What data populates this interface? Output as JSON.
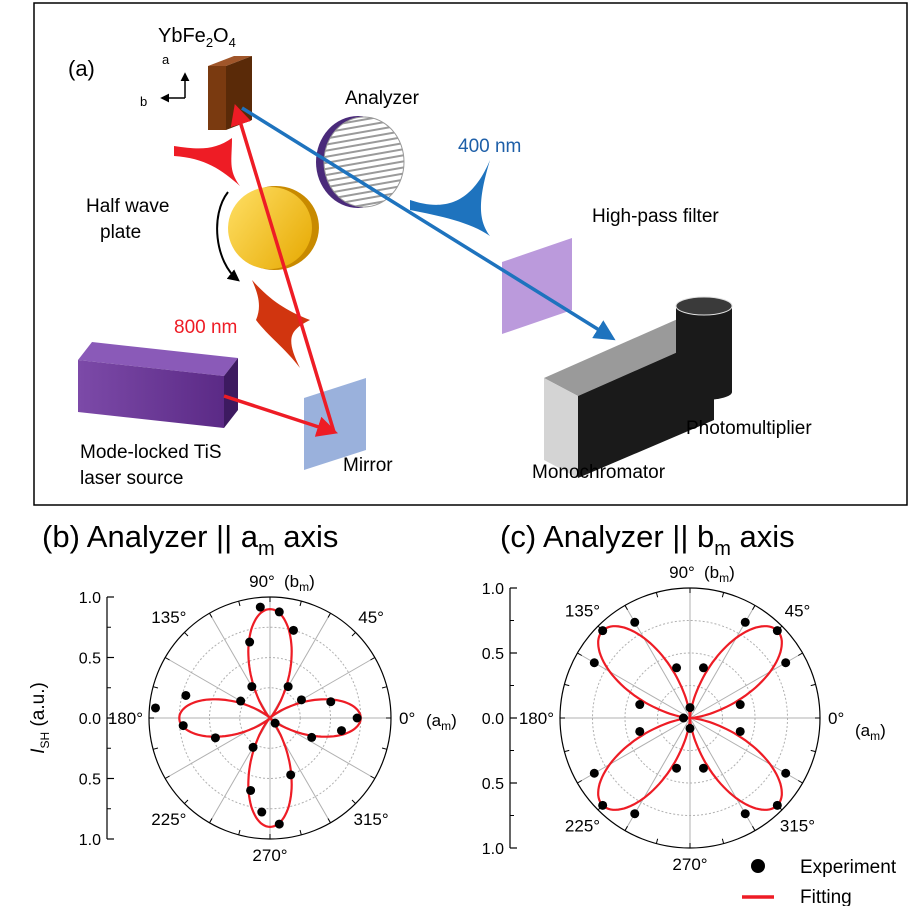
{
  "schematic": {
    "panel_label": "(a)",
    "crystal_label": "YbFe",
    "crystal_sub": "2",
    "crystal_label_end": "O",
    "crystal_sub2": "4",
    "axis_a": "a",
    "axis_b": "b",
    "analyzer": "Analyzer",
    "wavelength_blue": "400 nm",
    "half_wave_plate_line1": "Half wave",
    "half_wave_plate_line2": "plate",
    "high_pass_filter": "High-pass filter",
    "wavelength_red": "800 nm",
    "laser_line1": "Mode-locked TiS",
    "laser_line2": "laser source",
    "mirror": "Mirror",
    "photomultiplier": "Photomultiplier",
    "monochromator": "Monochromator",
    "colors": {
      "red_beam": "#ee1c25",
      "blue_beam": "#1e73be",
      "laser": "#5b2a86",
      "filter": "#b48fd8",
      "mirror": "#8fa8d8",
      "plate": "#f5c518",
      "crystal": "#7a3a10"
    }
  },
  "chart_data": [
    {
      "type": "polar-scatter",
      "panel": "(b)",
      "title_prefix": "(b) Analyzer || a",
      "title_sub": "m",
      "title_suffix": " axis",
      "ylabel": "I",
      "ylabel_sub": "SH",
      "ylabel_unit": " (a.u.)",
      "radial_ticks": [
        "1.0",
        "0.5",
        "0.0",
        "0.5",
        "1.0"
      ],
      "radial_max": 1.0,
      "angle_labels": [
        "0°",
        "45°",
        "90°",
        "135°",
        "180°",
        "225°",
        "270°",
        "315°"
      ],
      "angle_annot_0": "(a",
      "angle_annot_0_sub": "m",
      "angle_annot_90": "(b",
      "angle_annot_90_sub": "m",
      "fit_model": {
        "form": "a*cos^2(2θ)+b*cos^2(θ)",
        "petals_along": [
          0,
          90,
          180,
          270
        ],
        "lobe_long": 0.9,
        "lobe_short": 0.75
      },
      "experiment": [
        {
          "theta": 0,
          "r": 0.72
        },
        {
          "theta": 15,
          "r": 0.52
        },
        {
          "theta": 30,
          "r": 0.3
        },
        {
          "theta": 60,
          "r": 0.3
        },
        {
          "theta": 75,
          "r": 0.75
        },
        {
          "theta": 85,
          "r": 0.88
        },
        {
          "theta": 95,
          "r": 0.92
        },
        {
          "theta": 105,
          "r": 0.65
        },
        {
          "theta": 120,
          "r": 0.3
        },
        {
          "theta": 150,
          "r": 0.28
        },
        {
          "theta": 165,
          "r": 0.72
        },
        {
          "theta": 175,
          "r": 0.95
        },
        {
          "theta": 185,
          "r": 0.72
        },
        {
          "theta": 200,
          "r": 0.48
        },
        {
          "theta": 240,
          "r": 0.28
        },
        {
          "theta": 255,
          "r": 0.62
        },
        {
          "theta": 265,
          "r": 0.78
        },
        {
          "theta": 275,
          "r": 0.88
        },
        {
          "theta": 290,
          "r": 0.5
        },
        {
          "theta": 315,
          "r": 0.06
        },
        {
          "theta": 335,
          "r": 0.38
        },
        {
          "theta": 350,
          "r": 0.6
        }
      ]
    },
    {
      "type": "polar-scatter",
      "panel": "(c)",
      "title_prefix": "(c) Analyzer || b",
      "title_sub": "m",
      "title_suffix": " axis",
      "radial_ticks": [
        "1.0",
        "0.5",
        "0.0",
        "0.5",
        "1.0"
      ],
      "radial_max": 1.0,
      "angle_labels": [
        "0°",
        "45°",
        "90°",
        "135°",
        "180°",
        "225°",
        "270°",
        "315°"
      ],
      "angle_annot_0": "(a",
      "angle_annot_0_sub": "m",
      "angle_annot_90": "(b",
      "angle_annot_90_sub": "m",
      "fit_model": {
        "form": "sin^2(2θ)",
        "petals_along": [
          45,
          135,
          225,
          315
        ],
        "lobe_long": 0.95
      },
      "experiment": [
        {
          "theta": 15,
          "r": 0.4
        },
        {
          "theta": 30,
          "r": 0.85
        },
        {
          "theta": 45,
          "r": 0.95
        },
        {
          "theta": 60,
          "r": 0.85
        },
        {
          "theta": 75,
          "r": 0.4
        },
        {
          "theta": 90,
          "r": 0.08
        },
        {
          "theta": 105,
          "r": 0.4
        },
        {
          "theta": 120,
          "r": 0.85
        },
        {
          "theta": 135,
          "r": 0.95
        },
        {
          "theta": 150,
          "r": 0.85
        },
        {
          "theta": 165,
          "r": 0.4
        },
        {
          "theta": 180,
          "r": 0.05
        },
        {
          "theta": 195,
          "r": 0.4
        },
        {
          "theta": 210,
          "r": 0.85
        },
        {
          "theta": 225,
          "r": 0.95
        },
        {
          "theta": 240,
          "r": 0.85
        },
        {
          "theta": 255,
          "r": 0.4
        },
        {
          "theta": 270,
          "r": 0.08
        },
        {
          "theta": 285,
          "r": 0.4
        },
        {
          "theta": 300,
          "r": 0.85
        },
        {
          "theta": 315,
          "r": 0.95
        },
        {
          "theta": 330,
          "r": 0.85
        },
        {
          "theta": 345,
          "r": 0.4
        }
      ]
    }
  ],
  "legend": {
    "experiment": "Experiment",
    "fitting": "Fitting"
  }
}
